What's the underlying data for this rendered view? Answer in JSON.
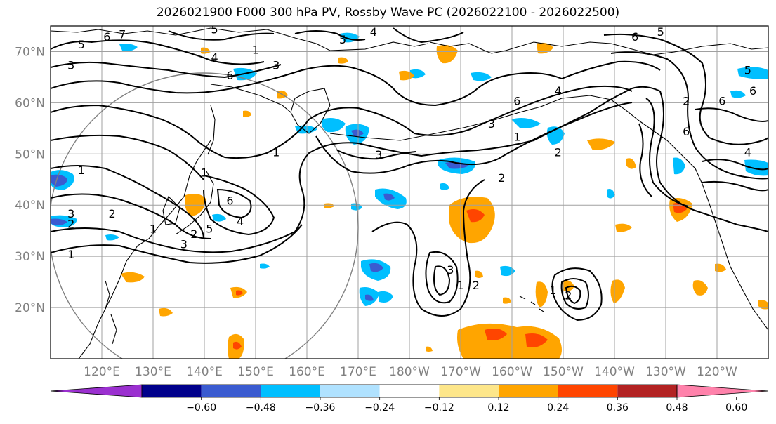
{
  "title": "2026021900 F000 300 hPa PV, Rossby Wave PC (2026022100 - 2026022500)",
  "map": {
    "projection": "PlateCarree",
    "lon_range": [
      110,
      250
    ],
    "lat_range": [
      10,
      75
    ],
    "lat_ticks": [
      {
        "lat": 70,
        "label": "70°N"
      },
      {
        "lat": 60,
        "label": "60°N"
      },
      {
        "lat": 50,
        "label": "50°N"
      },
      {
        "lat": 40,
        "label": "40°N"
      },
      {
        "lat": 30,
        "label": "30°N"
      },
      {
        "lat": 20,
        "label": "20°N"
      }
    ],
    "lon_ticks": [
      {
        "lon": 120,
        "label": "120°E"
      },
      {
        "lon": 130,
        "label": "130°E"
      },
      {
        "lon": 140,
        "label": "140°E"
      },
      {
        "lon": 150,
        "label": "150°E"
      },
      {
        "lon": 160,
        "label": "160°E"
      },
      {
        "lon": 170,
        "label": "170°E"
      },
      {
        "lon": 180,
        "label": "180°W"
      },
      {
        "lon": 190,
        "label": "170°W"
      },
      {
        "lon": 200,
        "label": "160°W"
      },
      {
        "lon": 210,
        "label": "150°W"
      },
      {
        "lon": 220,
        "label": "140°W"
      },
      {
        "lon": 230,
        "label": "130°W"
      },
      {
        "lon": 240,
        "label": "120°W"
      }
    ],
    "contour_labels": [
      {
        "text": "5",
        "lon": 116,
        "lat": 71
      },
      {
        "text": "6",
        "lon": 121,
        "lat": 72.5
      },
      {
        "text": "7",
        "lon": 124,
        "lat": 73
      },
      {
        "text": "3",
        "lon": 114,
        "lat": 67
      },
      {
        "text": "1",
        "lon": 150,
        "lat": 70
      },
      {
        "text": "3",
        "lon": 154,
        "lat": 67
      },
      {
        "text": "4",
        "lon": 142,
        "lat": 68.5
      },
      {
        "text": "5",
        "lon": 142,
        "lat": 74
      },
      {
        "text": "6",
        "lon": 145,
        "lat": 65
      },
      {
        "text": "5",
        "lon": 167,
        "lat": 72
      },
      {
        "text": "4",
        "lon": 173,
        "lat": 73.5
      },
      {
        "text": "6",
        "lon": 201,
        "lat": 60
      },
      {
        "text": "4",
        "lon": 209,
        "lat": 62
      },
      {
        "text": "3",
        "lon": 196,
        "lat": 55.5
      },
      {
        "text": "1",
        "lon": 201,
        "lat": 53
      },
      {
        "text": "2",
        "lon": 209,
        "lat": 50
      },
      {
        "text": "3",
        "lon": 174,
        "lat": 49.5
      },
      {
        "text": "1",
        "lon": 154,
        "lat": 50
      },
      {
        "text": "2",
        "lon": 198,
        "lat": 45
      },
      {
        "text": "1",
        "lon": 140,
        "lat": 46
      },
      {
        "text": "1",
        "lon": 116,
        "lat": 46.5
      },
      {
        "text": "6",
        "lon": 145,
        "lat": 40.5
      },
      {
        "text": "4",
        "lon": 147,
        "lat": 36.5
      },
      {
        "text": "5",
        "lon": 141,
        "lat": 35
      },
      {
        "text": "2",
        "lon": 138,
        "lat": 34
      },
      {
        "text": "3",
        "lon": 136,
        "lat": 32
      },
      {
        "text": "1",
        "lon": 130,
        "lat": 35
      },
      {
        "text": "2",
        "lon": 122,
        "lat": 38
      },
      {
        "text": "3",
        "lon": 114,
        "lat": 38
      },
      {
        "text": "2",
        "lon": 114,
        "lat": 36
      },
      {
        "text": "1",
        "lon": 114,
        "lat": 30
      },
      {
        "text": "3",
        "lon": 188,
        "lat": 27
      },
      {
        "text": "1",
        "lon": 190,
        "lat": 24
      },
      {
        "text": "2",
        "lon": 193,
        "lat": 24
      },
      {
        "text": "1",
        "lon": 208,
        "lat": 23
      },
      {
        "text": "2",
        "lon": 211,
        "lat": 22
      },
      {
        "text": "6",
        "lon": 224,
        "lat": 72.5
      },
      {
        "text": "5",
        "lon": 229,
        "lat": 73.5
      },
      {
        "text": "6",
        "lon": 241,
        "lat": 60
      },
      {
        "text": "2",
        "lon": 234,
        "lat": 60
      },
      {
        "text": "6",
        "lon": 247,
        "lat": 62
      },
      {
        "text": "5",
        "lon": 246,
        "lat": 66
      },
      {
        "text": "6",
        "lon": 234,
        "lat": 54
      },
      {
        "text": "4",
        "lon": 246,
        "lat": 50
      }
    ]
  },
  "colorbar": {
    "ticks": [
      "−0.60",
      "−0.48",
      "−0.36",
      "−0.24",
      "−0.12",
      "0.12",
      "0.24",
      "0.36",
      "0.48",
      "0.60"
    ],
    "colors": {
      "under": "#9b30d0",
      "bins": [
        "#00008b",
        "#3a5bd0",
        "#00bfff",
        "#b0e2ff",
        "#ffffff",
        "#fde68a",
        "#ffa500",
        "#ff4500",
        "#b22222"
      ],
      "over": "#ff82ab"
    }
  },
  "colors": {
    "grid": "#a0a0a0",
    "contour": "#000000",
    "coast": "#000000",
    "range_circle": "#808080"
  }
}
